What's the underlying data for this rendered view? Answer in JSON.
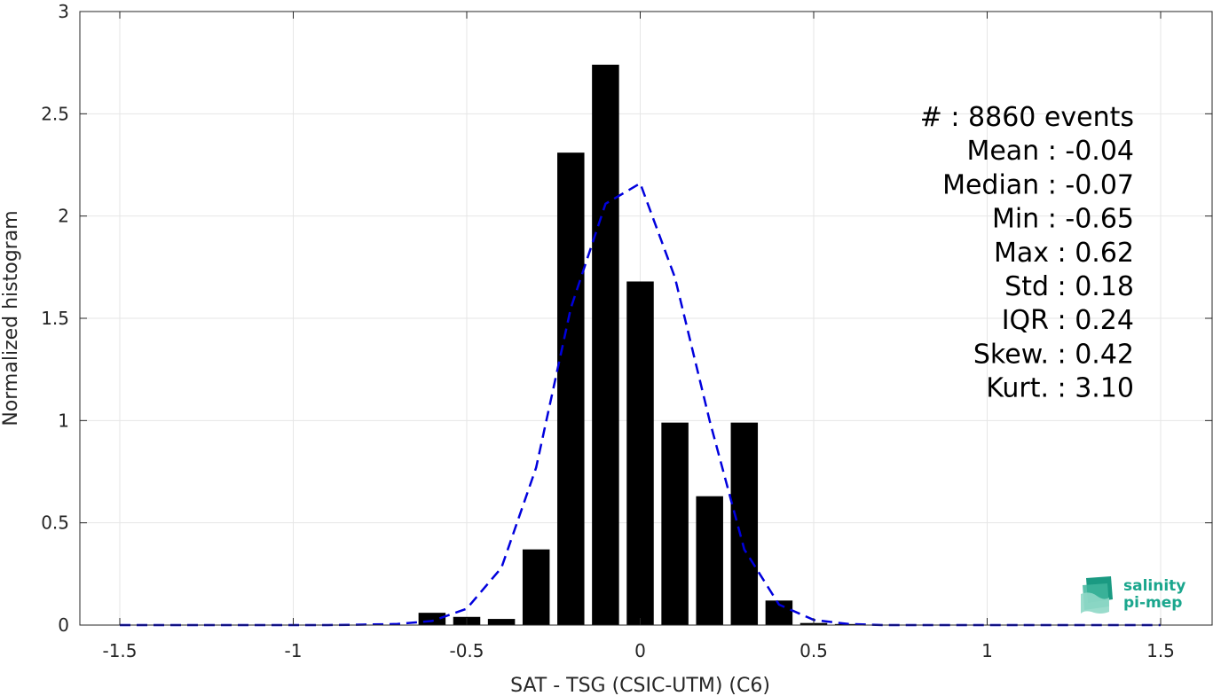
{
  "chart_data": {
    "type": "bar",
    "xlabel": "SAT - TSG (CSIC-UTM) (C6)",
    "ylabel": "Normalized histogram",
    "xlim": [
      -1.5,
      1.5
    ],
    "ylim": [
      0,
      3
    ],
    "grid": true,
    "xticks": [
      "-1.5",
      "-1",
      "-0.5",
      "0",
      "0.5",
      "1",
      "1.5"
    ],
    "yticks": [
      "0",
      "0.5",
      "1",
      "1.5",
      "2",
      "2.5",
      "3"
    ],
    "bar_color": "#000000",
    "bars": {
      "x": [
        -0.6,
        -0.5,
        -0.4,
        -0.3,
        -0.2,
        -0.1,
        0.0,
        0.1,
        0.2,
        0.3,
        0.4,
        0.5,
        0.6
      ],
      "values": [
        0.06,
        0.04,
        0.03,
        0.37,
        2.31,
        2.74,
        1.68,
        0.99,
        0.63,
        0.99,
        0.12,
        0.01,
        0.005
      ]
    },
    "fit_curve": {
      "style": "dashed",
      "color": "#0000dd",
      "x": [
        -1.5,
        -1.4,
        -1.3,
        -1.2,
        -1.1,
        -1.0,
        -0.9,
        -0.8,
        -0.7,
        -0.6,
        -0.5,
        -0.4,
        -0.3,
        -0.2,
        -0.1,
        0.0,
        0.1,
        0.2,
        0.3,
        0.4,
        0.5,
        0.6,
        0.7,
        0.8,
        0.9,
        1.0,
        1.1,
        1.2,
        1.3,
        1.4,
        1.5
      ],
      "y": [
        0,
        0,
        0,
        0,
        0,
        0,
        0,
        0.002,
        0.005,
        0.02,
        0.08,
        0.28,
        0.77,
        1.55,
        2.06,
        2.16,
        1.7,
        1.0,
        0.37,
        0.1,
        0.025,
        0.005,
        0,
        0,
        0,
        0,
        0,
        0,
        0,
        0,
        0
      ]
    },
    "stats": [
      "#  : 8860 events",
      "Mean : -0.04",
      "Median : -0.07",
      "Min : -0.65",
      "Max : 0.62",
      "Std : 0.18",
      "IQR : 0.24",
      "Skew. : 0.42",
      "Kurt. : 3.10"
    ]
  },
  "logo": {
    "line1": "salinity",
    "line2": "pi-mep",
    "color": "#1aa68d"
  }
}
